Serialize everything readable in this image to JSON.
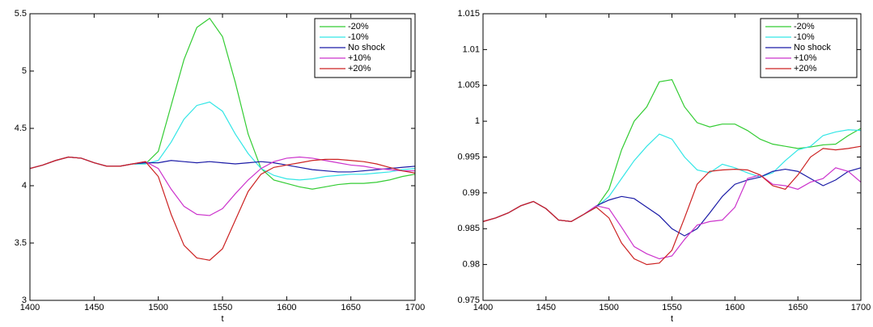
{
  "chart_data": [
    {
      "type": "line",
      "xlabel": "t",
      "x": [
        1400,
        1410,
        1420,
        1430,
        1440,
        1450,
        1460,
        1470,
        1480,
        1490,
        1500,
        1510,
        1520,
        1530,
        1540,
        1550,
        1560,
        1570,
        1580,
        1590,
        1600,
        1610,
        1620,
        1630,
        1640,
        1650,
        1660,
        1670,
        1680,
        1690,
        1700
      ],
      "xlim": [
        1400,
        1700
      ],
      "xticks": [
        1400,
        1450,
        1500,
        1550,
        1600,
        1650,
        1700
      ],
      "ylim": [
        3,
        5.5
      ],
      "yticks": [
        3,
        3.5,
        4,
        4.5,
        5,
        5.5
      ],
      "legend": "upper right",
      "series": [
        {
          "name": "-20%",
          "color": "#33cc33",
          "values": [
            4.15,
            4.18,
            4.22,
            4.25,
            4.24,
            4.2,
            4.17,
            4.17,
            4.19,
            4.19,
            4.3,
            4.7,
            5.1,
            5.38,
            5.46,
            5.3,
            4.9,
            4.45,
            4.15,
            4.05,
            4.02,
            3.99,
            3.97,
            3.99,
            4.01,
            4.02,
            4.02,
            4.03,
            4.05,
            4.08,
            4.1
          ]
        },
        {
          "name": "-10%",
          "color": "#33e6e6",
          "values": [
            4.15,
            4.18,
            4.22,
            4.25,
            4.24,
            4.2,
            4.17,
            4.17,
            4.19,
            4.19,
            4.22,
            4.38,
            4.58,
            4.7,
            4.73,
            4.65,
            4.45,
            4.28,
            4.15,
            4.09,
            4.06,
            4.05,
            4.06,
            4.08,
            4.09,
            4.1,
            4.1,
            4.11,
            4.12,
            4.14,
            4.15
          ]
        },
        {
          "name": "No shock",
          "color": "#1a1aa6",
          "values": [
            4.15,
            4.18,
            4.22,
            4.25,
            4.24,
            4.2,
            4.17,
            4.17,
            4.19,
            4.2,
            4.2,
            4.22,
            4.21,
            4.2,
            4.21,
            4.2,
            4.19,
            4.2,
            4.21,
            4.2,
            4.18,
            4.16,
            4.14,
            4.13,
            4.12,
            4.12,
            4.13,
            4.14,
            4.15,
            4.16,
            4.17
          ]
        },
        {
          "name": "+10%",
          "color": "#cc33cc",
          "values": [
            4.15,
            4.18,
            4.22,
            4.25,
            4.24,
            4.2,
            4.17,
            4.17,
            4.19,
            4.21,
            4.15,
            3.97,
            3.82,
            3.75,
            3.74,
            3.8,
            3.93,
            4.05,
            4.15,
            4.21,
            4.24,
            4.25,
            4.24,
            4.22,
            4.2,
            4.18,
            4.17,
            4.15,
            4.14,
            4.13,
            4.13
          ]
        },
        {
          "name": "+20%",
          "color": "#cc2222",
          "values": [
            4.15,
            4.18,
            4.22,
            4.25,
            4.24,
            4.2,
            4.17,
            4.17,
            4.19,
            4.21,
            4.08,
            3.75,
            3.48,
            3.37,
            3.35,
            3.45,
            3.7,
            3.95,
            4.1,
            4.16,
            4.18,
            4.2,
            4.22,
            4.23,
            4.23,
            4.22,
            4.21,
            4.19,
            4.16,
            4.13,
            4.11
          ]
        }
      ]
    },
    {
      "type": "line",
      "xlabel": "t",
      "x": [
        1400,
        1410,
        1420,
        1430,
        1440,
        1450,
        1460,
        1470,
        1480,
        1490,
        1500,
        1510,
        1520,
        1530,
        1540,
        1550,
        1560,
        1570,
        1580,
        1590,
        1600,
        1610,
        1620,
        1630,
        1640,
        1650,
        1660,
        1670,
        1680,
        1690,
        1700
      ],
      "xlim": [
        1400,
        1700
      ],
      "xticks": [
        1400,
        1450,
        1500,
        1550,
        1600,
        1650,
        1700
      ],
      "ylim": [
        0.975,
        1.015
      ],
      "yticks": [
        0.975,
        0.98,
        0.985,
        0.99,
        0.995,
        1,
        1.005,
        1.01,
        1.015
      ],
      "legend": "upper right",
      "series": [
        {
          "name": "-20%",
          "color": "#33cc33",
          "values": [
            0.986,
            0.9865,
            0.9872,
            0.9882,
            0.9888,
            0.9878,
            0.9862,
            0.986,
            0.987,
            0.988,
            0.9905,
            0.996,
            1.0,
            1.002,
            1.0055,
            1.0058,
            1.002,
            0.9998,
            0.9992,
            0.9996,
            0.9996,
            0.9987,
            0.9975,
            0.9968,
            0.9965,
            0.9962,
            0.9964,
            0.9967,
            0.9968,
            0.998,
            0.999
          ]
        },
        {
          "name": "-10%",
          "color": "#33e6e6",
          "values": [
            0.986,
            0.9865,
            0.9872,
            0.9882,
            0.9888,
            0.9878,
            0.9862,
            0.986,
            0.987,
            0.988,
            0.9895,
            0.992,
            0.9945,
            0.9965,
            0.9982,
            0.9975,
            0.995,
            0.9932,
            0.9928,
            0.994,
            0.9935,
            0.9928,
            0.9922,
            0.9928,
            0.9945,
            0.996,
            0.9965,
            0.998,
            0.9985,
            0.9988,
            0.9987
          ]
        },
        {
          "name": "No shock",
          "color": "#1a1aa6",
          "values": [
            0.986,
            0.9865,
            0.9872,
            0.9882,
            0.9888,
            0.9878,
            0.9862,
            0.986,
            0.987,
            0.9882,
            0.989,
            0.9895,
            0.9892,
            0.988,
            0.9868,
            0.985,
            0.984,
            0.985,
            0.9872,
            0.9895,
            0.9912,
            0.9918,
            0.9922,
            0.993,
            0.9933,
            0.993,
            0.992,
            0.991,
            0.9918,
            0.993,
            0.9935
          ]
        },
        {
          "name": "+10%",
          "color": "#cc33cc",
          "values": [
            0.986,
            0.9865,
            0.9872,
            0.9882,
            0.9888,
            0.9878,
            0.9862,
            0.986,
            0.987,
            0.9882,
            0.9878,
            0.9852,
            0.9825,
            0.9815,
            0.9808,
            0.9812,
            0.9835,
            0.9855,
            0.986,
            0.9862,
            0.988,
            0.992,
            0.9925,
            0.9912,
            0.991,
            0.9905,
            0.9915,
            0.992,
            0.9935,
            0.993,
            0.9915
          ]
        },
        {
          "name": "+20%",
          "color": "#cc2222",
          "values": [
            0.986,
            0.9865,
            0.9872,
            0.9882,
            0.9888,
            0.9878,
            0.9862,
            0.986,
            0.987,
            0.988,
            0.9865,
            0.983,
            0.9808,
            0.98,
            0.9802,
            0.982,
            0.9865,
            0.9912,
            0.993,
            0.9932,
            0.9933,
            0.9932,
            0.9925,
            0.991,
            0.9905,
            0.9925,
            0.995,
            0.9962,
            0.996,
            0.9962,
            0.9965
          ]
        }
      ]
    }
  ]
}
